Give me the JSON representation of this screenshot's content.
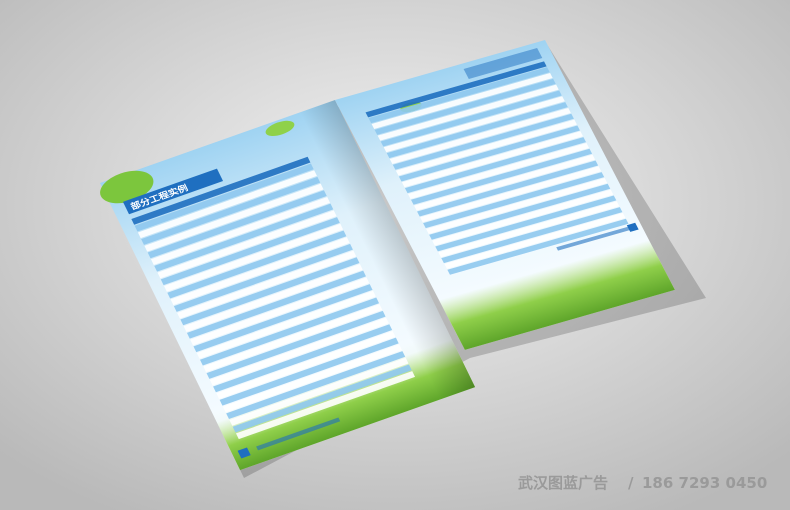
{
  "left_page": {
    "title": "部分工程实例"
  },
  "watermark": {
    "company": "武汉图蓝广告",
    "separator": "/",
    "phone": "186 7293 0450"
  }
}
